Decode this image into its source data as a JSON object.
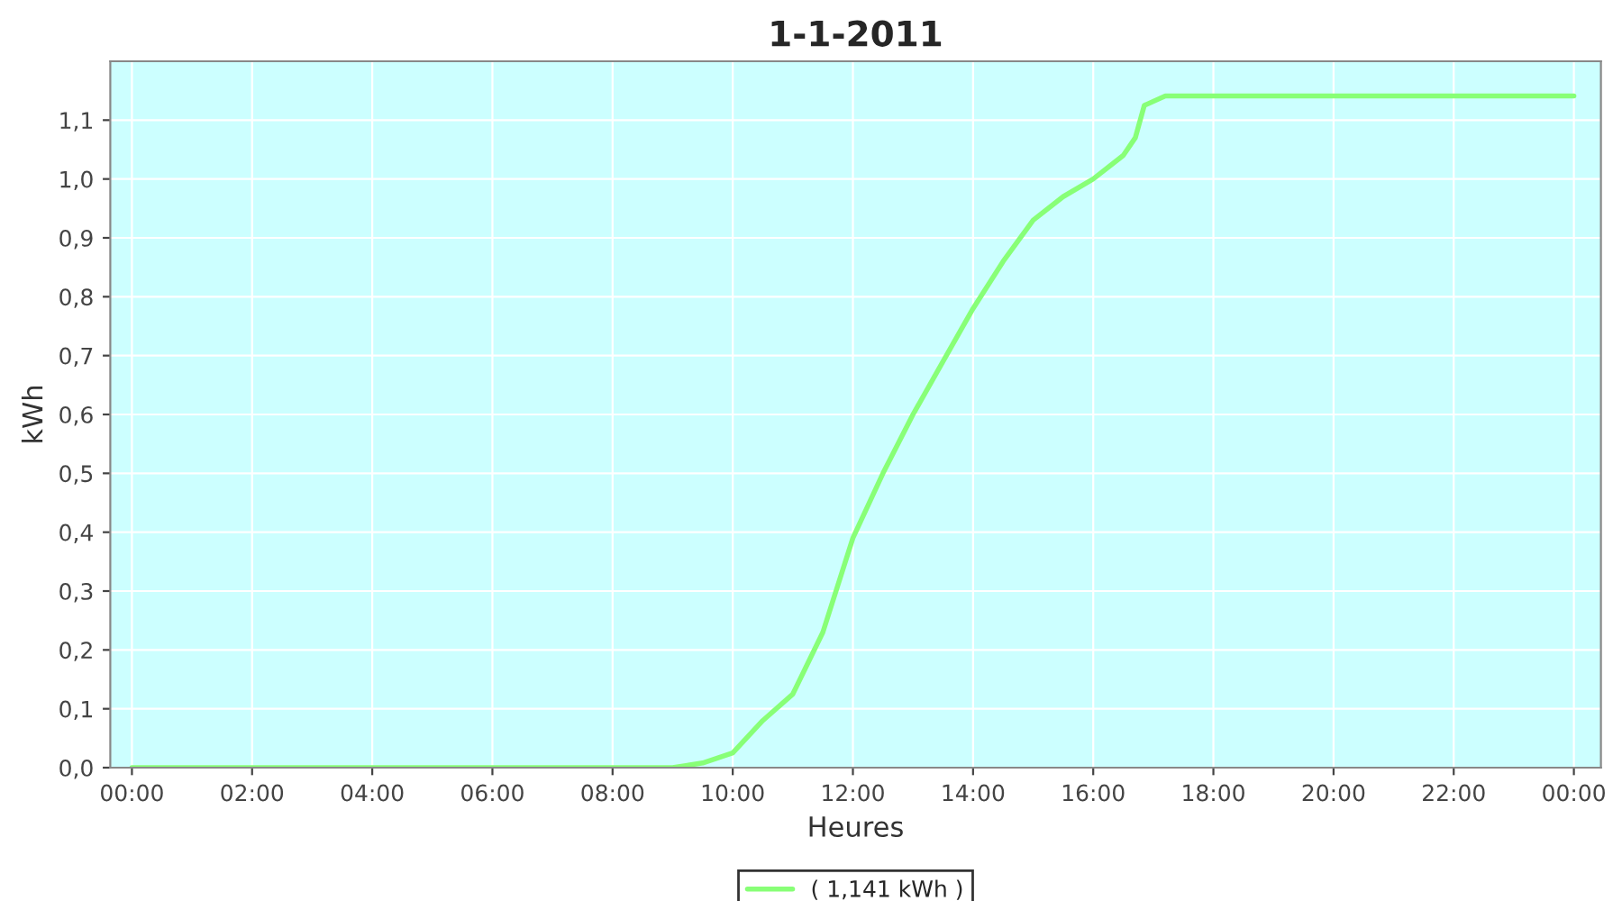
{
  "chart_data": {
    "type": "line",
    "title": "1-1-2011",
    "xlabel": "Heures",
    "ylabel": "kWh",
    "x": [
      0,
      9.0,
      9.5,
      10.0,
      10.5,
      11.0,
      11.5,
      12.0,
      12.5,
      13.0,
      13.5,
      14.0,
      14.5,
      15.0,
      15.5,
      16.0,
      16.5,
      16.7,
      16.85,
      17.2,
      24.0
    ],
    "series": [
      {
        "name": "( 1,141 kWh )",
        "color": "#88ff77",
        "values": [
          0,
          0,
          0.008,
          0.025,
          0.08,
          0.125,
          0.23,
          0.39,
          0.5,
          0.6,
          0.69,
          0.78,
          0.86,
          0.93,
          0.97,
          1.0,
          1.04,
          1.07,
          1.125,
          1.141,
          1.141
        ]
      }
    ],
    "xlim": [
      -0.36,
      24.45
    ],
    "ylim": [
      0,
      1.2
    ],
    "xticks": [
      {
        "value": 0,
        "label": "00:00"
      },
      {
        "value": 2,
        "label": "02:00"
      },
      {
        "value": 4,
        "label": "04:00"
      },
      {
        "value": 6,
        "label": "06:00"
      },
      {
        "value": 8,
        "label": "08:00"
      },
      {
        "value": 10,
        "label": "10:00"
      },
      {
        "value": 12,
        "label": "12:00"
      },
      {
        "value": 14,
        "label": "14:00"
      },
      {
        "value": 16,
        "label": "16:00"
      },
      {
        "value": 18,
        "label": "18:00"
      },
      {
        "value": 20,
        "label": "20:00"
      },
      {
        "value": 22,
        "label": "22:00"
      },
      {
        "value": 24,
        "label": "00:00"
      }
    ],
    "yticks": [
      {
        "value": 0,
        "label": "0,0"
      },
      {
        "value": 0.1,
        "label": "0,1"
      },
      {
        "value": 0.2,
        "label": "0,2"
      },
      {
        "value": 0.3,
        "label": "0,3"
      },
      {
        "value": 0.4,
        "label": "0,4"
      },
      {
        "value": 0.5,
        "label": "0,5"
      },
      {
        "value": 0.6,
        "label": "0,6"
      },
      {
        "value": 0.7,
        "label": "0,7"
      },
      {
        "value": 0.8,
        "label": "0,8"
      },
      {
        "value": 0.9,
        "label": "0,9"
      },
      {
        "value": 1.0,
        "label": "1,0"
      },
      {
        "value": 1.1,
        "label": "1,1"
      }
    ],
    "grid": true,
    "legend": "bottom"
  }
}
